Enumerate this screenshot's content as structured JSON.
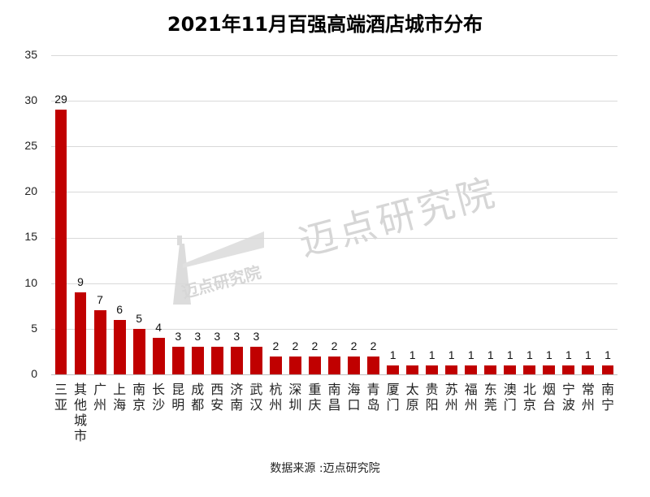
{
  "chart_data": {
    "type": "bar",
    "title": "2021年11月百强高端酒店城市分布",
    "xlabel": "",
    "ylabel": "",
    "ylim": [
      0,
      35
    ],
    "yticks": [
      0,
      5,
      10,
      15,
      20,
      25,
      30,
      35
    ],
    "grid": true,
    "legend": null,
    "bar_color": "#C00000",
    "data_labels": true,
    "categories": [
      "三亚",
      "其他城市",
      "广州",
      "上海",
      "南京",
      "长沙",
      "昆明",
      "成都",
      "西安",
      "济南",
      "武汉",
      "杭州",
      "深圳",
      "重庆",
      "南昌",
      "海口",
      "青岛",
      "厦门",
      "太原",
      "贵阳",
      "苏州",
      "福州",
      "东莞",
      "澳门",
      "北京",
      "烟台",
      "宁波",
      "常州",
      "南宁"
    ],
    "values": [
      29,
      9,
      7,
      6,
      5,
      4,
      3,
      3,
      3,
      3,
      3,
      2,
      2,
      2,
      2,
      2,
      2,
      1,
      1,
      1,
      1,
      1,
      1,
      1,
      1,
      1,
      1,
      1,
      1
    ]
  },
  "title": "2021年11月百强高端酒店城市分布",
  "source": "数据来源 :迈点研究院",
  "watermark": {
    "big": "迈点研究院",
    "small": "迈点研究院"
  },
  "yticks": [
    "0",
    "5",
    "10",
    "15",
    "20",
    "25",
    "30",
    "35"
  ],
  "labels": [
    "29",
    "9",
    "7",
    "6",
    "5",
    "4",
    "3",
    "3",
    "3",
    "3",
    "3",
    "2",
    "2",
    "2",
    "2",
    "2",
    "2",
    "1",
    "1",
    "1",
    "1",
    "1",
    "1",
    "1",
    "1",
    "1",
    "1",
    "1",
    "1"
  ],
  "colors": {
    "bar": "#C00000",
    "grid": "#d9d9d9",
    "watermark": "#d6d6d6"
  }
}
